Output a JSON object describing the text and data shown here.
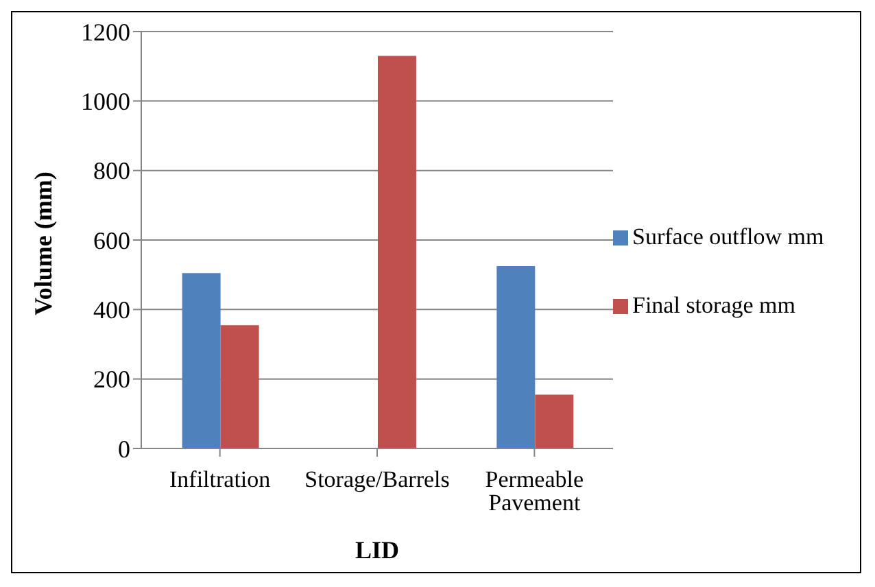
{
  "chart_data": {
    "type": "bar",
    "xlabel": "LID",
    "ylabel": "Volume (mm)",
    "categories": [
      "Infiltration",
      "Storage/Barrels",
      "Permeable Pavement"
    ],
    "series": [
      {
        "name": "Surface outflow mm",
        "color": "#4f81bd",
        "values": [
          505,
          0,
          525
        ]
      },
      {
        "name": "Final storage mm",
        "color": "#c0504d",
        "values": [
          355,
          1130,
          155
        ]
      }
    ],
    "ylim": [
      0,
      1200
    ],
    "yticks": [
      0,
      200,
      400,
      600,
      800,
      1000,
      1200
    ],
    "grid": "y",
    "legend": "right"
  }
}
